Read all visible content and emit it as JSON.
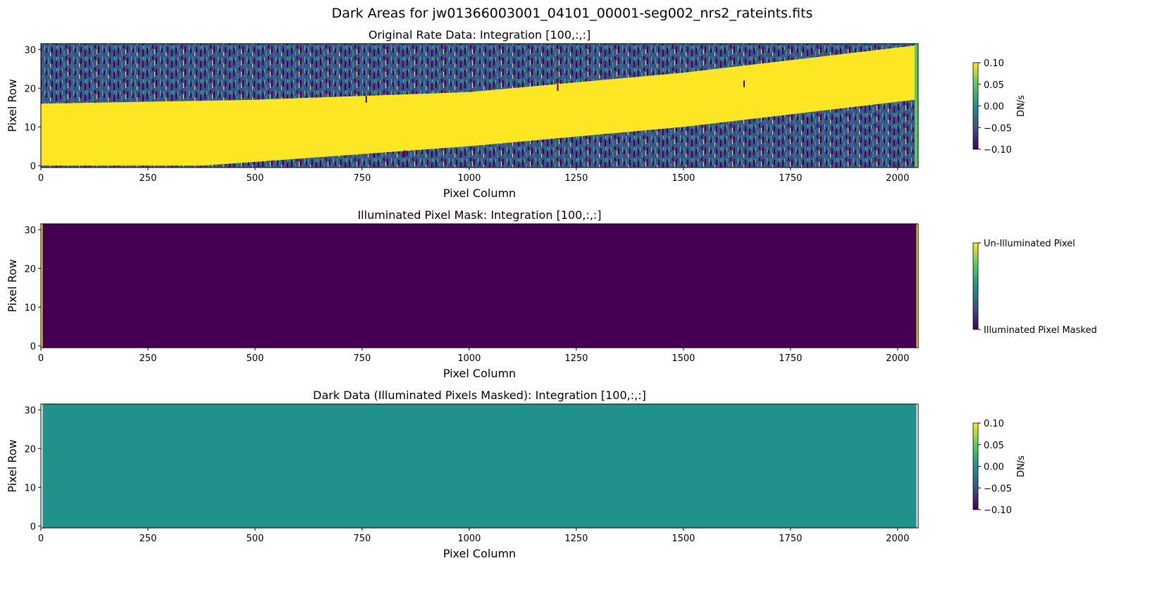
{
  "figure": {
    "suptitle": "Dark Areas for jw01366003001_04101_00001-seg002_nrs2_rateints.fits"
  },
  "colors": {
    "viridis": [
      "#440154",
      "#3b528b",
      "#21918c",
      "#5ec962",
      "#fde725"
    ]
  },
  "chart_data": [
    {
      "type": "heatmap",
      "title": "Original Rate Data: Integration [100,:,:]",
      "xlabel": "Pixel Column",
      "ylabel": "Pixel Row",
      "xlim": [
        0,
        2048
      ],
      "ylim": [
        -0.5,
        31.5
      ],
      "xticks": [
        0,
        250,
        500,
        750,
        1000,
        1250,
        1500,
        1750,
        2000
      ],
      "yticks": [
        0,
        10,
        20,
        30
      ],
      "colormap": "viridis",
      "clim": [
        -0.1,
        0.1
      ],
      "colorbar": {
        "label": "DN/s",
        "ticks": [
          "0.10",
          "0.05",
          "0.00",
          "−0.05",
          "−0.10"
        ]
      },
      "illuminated_trace": {
        "lower_edge": [
          [
            0,
            0
          ],
          [
            380,
            0
          ],
          [
            1000,
            5
          ],
          [
            1500,
            10
          ],
          [
            2040,
            17
          ]
        ],
        "upper_edge": [
          [
            0,
            16
          ],
          [
            500,
            17
          ],
          [
            1000,
            19
          ],
          [
            1500,
            24
          ],
          [
            2040,
            31
          ]
        ],
        "value": 0.1
      }
    },
    {
      "type": "heatmap",
      "title": "Illuminated Pixel Mask: Integration [100,:,:]",
      "xlabel": "Pixel Column",
      "ylabel": "Pixel Row",
      "xlim": [
        0,
        2048
      ],
      "ylim": [
        -0.5,
        31.5
      ],
      "xticks": [
        0,
        250,
        500,
        750,
        1000,
        1250,
        1500,
        1750,
        2000
      ],
      "yticks": [
        0,
        10,
        20,
        30
      ],
      "colormap": "viridis",
      "fill_value": 0,
      "edge_columns": [
        [
          0,
          4
        ],
        [
          2044,
          2048
        ]
      ],
      "edge_value": 1,
      "colorbar": {
        "label": "",
        "ticks": [
          "Un-Illuminated Pixel",
          "Illuminated Pixel Masked"
        ]
      }
    },
    {
      "type": "heatmap",
      "title": "Dark Data (Illuminated Pixels Masked): Integration [100,:,:]",
      "xlabel": "Pixel Column",
      "ylabel": "Pixel Row",
      "xlim": [
        0,
        2048
      ],
      "ylim": [
        -0.5,
        31.5
      ],
      "xticks": [
        0,
        250,
        500,
        750,
        1000,
        1250,
        1500,
        1750,
        2000
      ],
      "yticks": [
        0,
        10,
        20,
        30
      ],
      "colormap": "viridis",
      "clim": [
        -0.1,
        0.1
      ],
      "fill_value": 0.0,
      "data_columns": [
        4,
        2044
      ],
      "colorbar": {
        "label": "DN/s",
        "ticks": [
          "0.10",
          "0.05",
          "0.00",
          "−0.05",
          "−0.10"
        ]
      }
    }
  ]
}
